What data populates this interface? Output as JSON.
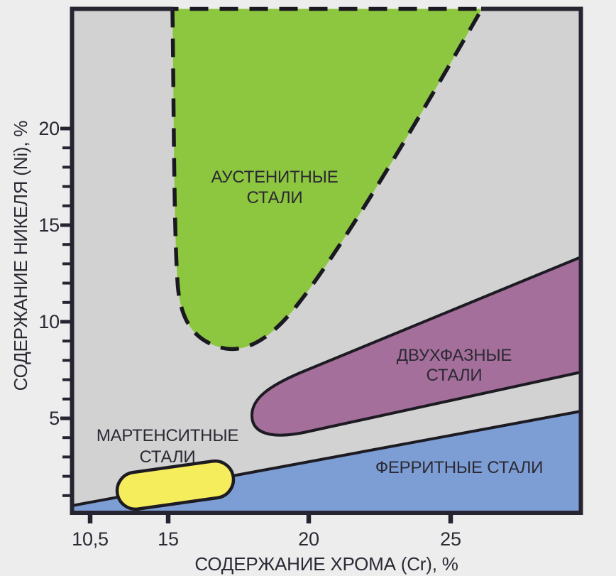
{
  "figure": {
    "background_color": "#eeedee",
    "plot_background_color": "#d2d2d3",
    "axis_line_color": "#262430",
    "text_color": "#2b2933",
    "region_outline_color": "#1d1b22"
  },
  "chart_data": {
    "type": "area",
    "xlabel": "СОДЕРЖАНИЕ ХРОМА (Cr), %",
    "ylabel": "СОДЕРЖАНИЕ НИКЕЛЯ (Ni), %",
    "x_ticks": [
      "10,5",
      "15",
      "20",
      "25"
    ],
    "x_tick_values": [
      10.5,
      15,
      20,
      25
    ],
    "y_ticks": [
      "20",
      "15",
      "10",
      "5"
    ],
    "y_tick_values": [
      20,
      15,
      10,
      5
    ],
    "y_minor_step": 1,
    "xlim": [
      11.5,
      29.7
    ],
    "ylim": [
      0,
      26.2
    ],
    "grid": false,
    "legend": "labels-inside-regions",
    "regions": [
      {
        "key": "austenitic",
        "label_lines": [
          "АУСТЕНИТНЫЕ",
          "СТАЛИ"
        ],
        "color": "#8dc63f",
        "outline": "dashed",
        "approx_boundary_cr_ni": [
          [
            15.2,
            26.2
          ],
          [
            15.3,
            12.0
          ],
          [
            17.3,
            8.5
          ],
          [
            19.5,
            11.0
          ],
          [
            26.1,
            26.2
          ]
        ]
      },
      {
        "key": "duplex",
        "label_lines": [
          "ДВУХФАЗНЫЕ",
          "СТАЛИ"
        ],
        "color": "#a56f9b",
        "outline": "solid",
        "approx_boundary_cr_ni": [
          [
            18.0,
            5.1
          ],
          [
            29.7,
            13.2
          ],
          [
            29.7,
            7.3
          ]
        ]
      },
      {
        "key": "martensitic",
        "label_lines": [
          "МАРТЕНСИТНЫЕ",
          "СТАЛИ"
        ],
        "color": "#f6ed5c",
        "outline": "solid",
        "approx_boundary_cr_ni": [
          [
            13.5,
            1.4
          ],
          [
            17.0,
            2.2
          ]
        ],
        "shape": "capsule"
      },
      {
        "key": "ferritic",
        "label_lines": [
          "ФЕРРИТНЫЕ СТАЛИ"
        ],
        "color": "#7d9ed4",
        "outline": "solid",
        "approx_boundary_cr_ni": [
          [
            11.5,
            0.4
          ],
          [
            29.7,
            5.3
          ],
          [
            29.7,
            0.0
          ],
          [
            11.5,
            0.0
          ]
        ]
      }
    ]
  }
}
